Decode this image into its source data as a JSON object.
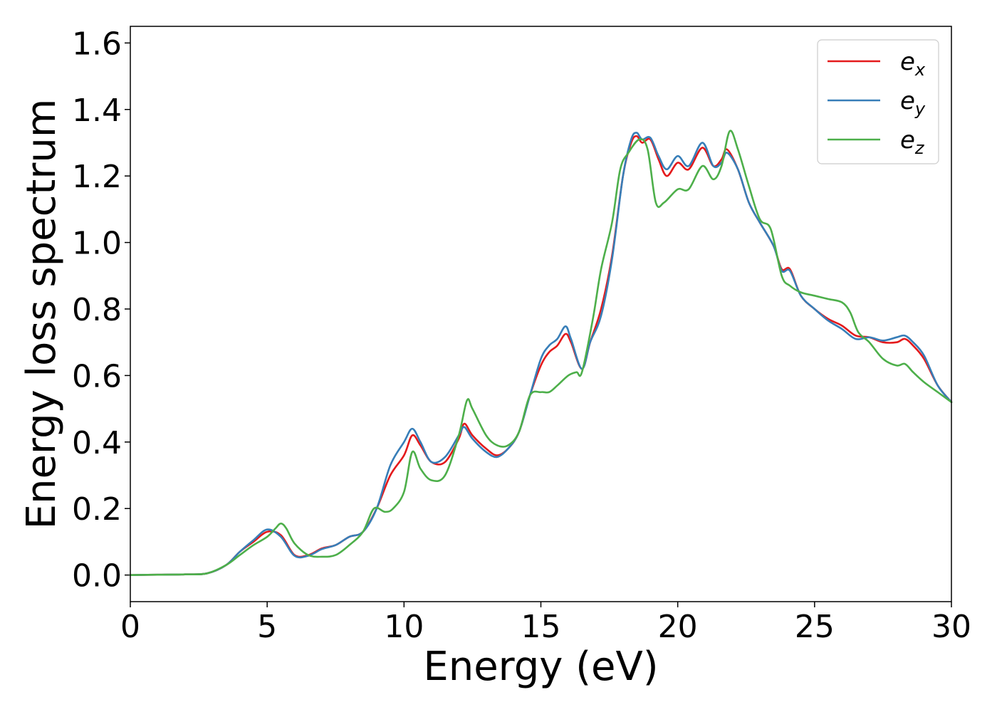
{
  "chart_data": {
    "type": "line",
    "xlabel": "Energy (eV)",
    "ylabel": "Energy loss spectrum",
    "xlim": [
      0,
      30
    ],
    "ylim": [
      -0.08,
      1.65
    ],
    "xticks": [
      0,
      5,
      10,
      15,
      20,
      25,
      30
    ],
    "xtick_labels": [
      "0",
      "5",
      "10",
      "15",
      "20",
      "25",
      "30"
    ],
    "yticks": [
      0.0,
      0.2,
      0.4,
      0.6,
      0.8,
      1.0,
      1.2,
      1.4,
      1.6
    ],
    "ytick_labels": [
      "0.0",
      "0.2",
      "0.4",
      "0.6",
      "0.8",
      "1.0",
      "1.2",
      "1.4",
      "1.6"
    ],
    "grid": false,
    "legend_position": "top-right",
    "series": [
      {
        "name": "e",
        "subscript": "x",
        "color": "#e41a1c",
        "points": [
          [
            0,
            0.0
          ],
          [
            1,
            0.001
          ],
          [
            2,
            0.002
          ],
          [
            2.8,
            0.005
          ],
          [
            3.5,
            0.03
          ],
          [
            4.0,
            0.07
          ],
          [
            4.5,
            0.1
          ],
          [
            5.0,
            0.13
          ],
          [
            5.5,
            0.12
          ],
          [
            6.0,
            0.06
          ],
          [
            6.5,
            0.06
          ],
          [
            7.0,
            0.08
          ],
          [
            7.5,
            0.09
          ],
          [
            8.0,
            0.115
          ],
          [
            8.5,
            0.13
          ],
          [
            9.0,
            0.2
          ],
          [
            9.5,
            0.3
          ],
          [
            10.0,
            0.36
          ],
          [
            10.3,
            0.42
          ],
          [
            10.6,
            0.39
          ],
          [
            11.0,
            0.34
          ],
          [
            11.5,
            0.34
          ],
          [
            12.0,
            0.41
          ],
          [
            12.2,
            0.455
          ],
          [
            12.5,
            0.42
          ],
          [
            13.0,
            0.38
          ],
          [
            13.4,
            0.36
          ],
          [
            13.8,
            0.38
          ],
          [
            14.2,
            0.43
          ],
          [
            14.6,
            0.54
          ],
          [
            15.0,
            0.63
          ],
          [
            15.3,
            0.67
          ],
          [
            15.6,
            0.69
          ],
          [
            15.9,
            0.725
          ],
          [
            16.1,
            0.7
          ],
          [
            16.5,
            0.62
          ],
          [
            16.8,
            0.7
          ],
          [
            17.2,
            0.8
          ],
          [
            17.6,
            0.96
          ],
          [
            18.0,
            1.2
          ],
          [
            18.3,
            1.3
          ],
          [
            18.5,
            1.32
          ],
          [
            18.7,
            1.3
          ],
          [
            19.0,
            1.31
          ],
          [
            19.3,
            1.25
          ],
          [
            19.6,
            1.2
          ],
          [
            20.0,
            1.24
          ],
          [
            20.4,
            1.22
          ],
          [
            20.9,
            1.285
          ],
          [
            21.3,
            1.23
          ],
          [
            21.6,
            1.25
          ],
          [
            21.8,
            1.28
          ],
          [
            22.2,
            1.22
          ],
          [
            22.6,
            1.12
          ],
          [
            23.0,
            1.06
          ],
          [
            23.5,
            0.99
          ],
          [
            23.8,
            0.92
          ],
          [
            24.1,
            0.92
          ],
          [
            24.5,
            0.84
          ],
          [
            25.0,
            0.8
          ],
          [
            25.5,
            0.77
          ],
          [
            26.0,
            0.75
          ],
          [
            26.5,
            0.72
          ],
          [
            27.0,
            0.715
          ],
          [
            27.5,
            0.7
          ],
          [
            28.0,
            0.7
          ],
          [
            28.3,
            0.71
          ],
          [
            28.6,
            0.69
          ],
          [
            29.0,
            0.65
          ],
          [
            29.5,
            0.57
          ],
          [
            30.0,
            0.52
          ]
        ]
      },
      {
        "name": "e",
        "subscript": "y",
        "color": "#377eb8",
        "points": [
          [
            0,
            0.0
          ],
          [
            1,
            0.001
          ],
          [
            2,
            0.002
          ],
          [
            2.8,
            0.005
          ],
          [
            3.5,
            0.03
          ],
          [
            4.0,
            0.07
          ],
          [
            4.5,
            0.105
          ],
          [
            5.0,
            0.137
          ],
          [
            5.5,
            0.115
          ],
          [
            6.0,
            0.058
          ],
          [
            6.5,
            0.058
          ],
          [
            7.0,
            0.078
          ],
          [
            7.5,
            0.09
          ],
          [
            8.0,
            0.115
          ],
          [
            8.5,
            0.13
          ],
          [
            9.0,
            0.2
          ],
          [
            9.5,
            0.33
          ],
          [
            10.0,
            0.4
          ],
          [
            10.3,
            0.44
          ],
          [
            10.6,
            0.4
          ],
          [
            11.0,
            0.34
          ],
          [
            11.5,
            0.355
          ],
          [
            12.0,
            0.42
          ],
          [
            12.2,
            0.445
          ],
          [
            12.5,
            0.41
          ],
          [
            13.0,
            0.37
          ],
          [
            13.4,
            0.355
          ],
          [
            13.8,
            0.38
          ],
          [
            14.2,
            0.43
          ],
          [
            14.6,
            0.54
          ],
          [
            15.0,
            0.65
          ],
          [
            15.3,
            0.69
          ],
          [
            15.6,
            0.71
          ],
          [
            15.9,
            0.748
          ],
          [
            16.1,
            0.71
          ],
          [
            16.5,
            0.62
          ],
          [
            16.8,
            0.7
          ],
          [
            17.2,
            0.78
          ],
          [
            17.6,
            0.95
          ],
          [
            18.0,
            1.2
          ],
          [
            18.3,
            1.31
          ],
          [
            18.5,
            1.33
          ],
          [
            18.7,
            1.31
          ],
          [
            19.0,
            1.315
          ],
          [
            19.3,
            1.26
          ],
          [
            19.6,
            1.22
          ],
          [
            20.0,
            1.26
          ],
          [
            20.4,
            1.23
          ],
          [
            20.9,
            1.3
          ],
          [
            21.3,
            1.23
          ],
          [
            21.6,
            1.24
          ],
          [
            21.8,
            1.27
          ],
          [
            22.2,
            1.22
          ],
          [
            22.6,
            1.12
          ],
          [
            23.0,
            1.06
          ],
          [
            23.5,
            0.99
          ],
          [
            23.8,
            0.915
          ],
          [
            24.1,
            0.915
          ],
          [
            24.5,
            0.84
          ],
          [
            25.0,
            0.8
          ],
          [
            25.5,
            0.765
          ],
          [
            26.0,
            0.74
          ],
          [
            26.5,
            0.71
          ],
          [
            27.0,
            0.715
          ],
          [
            27.5,
            0.705
          ],
          [
            28.0,
            0.715
          ],
          [
            28.3,
            0.72
          ],
          [
            28.6,
            0.7
          ],
          [
            29.0,
            0.66
          ],
          [
            29.5,
            0.57
          ],
          [
            30.0,
            0.52
          ]
        ]
      },
      {
        "name": "e",
        "subscript": "z",
        "color": "#4daf4a",
        "points": [
          [
            0,
            0.0
          ],
          [
            1,
            0.001
          ],
          [
            2,
            0.002
          ],
          [
            2.8,
            0.005
          ],
          [
            3.5,
            0.03
          ],
          [
            4.0,
            0.06
          ],
          [
            4.5,
            0.09
          ],
          [
            5.0,
            0.115
          ],
          [
            5.3,
            0.14
          ],
          [
            5.5,
            0.155
          ],
          [
            5.7,
            0.14
          ],
          [
            6.0,
            0.095
          ],
          [
            6.5,
            0.06
          ],
          [
            7.0,
            0.055
          ],
          [
            7.5,
            0.06
          ],
          [
            8.0,
            0.09
          ],
          [
            8.5,
            0.13
          ],
          [
            8.9,
            0.2
          ],
          [
            9.3,
            0.19
          ],
          [
            9.6,
            0.2
          ],
          [
            10.0,
            0.25
          ],
          [
            10.3,
            0.37
          ],
          [
            10.6,
            0.32
          ],
          [
            11.0,
            0.285
          ],
          [
            11.5,
            0.3
          ],
          [
            12.0,
            0.42
          ],
          [
            12.3,
            0.525
          ],
          [
            12.5,
            0.5
          ],
          [
            13.0,
            0.42
          ],
          [
            13.4,
            0.39
          ],
          [
            13.8,
            0.39
          ],
          [
            14.2,
            0.43
          ],
          [
            14.6,
            0.54
          ],
          [
            15.0,
            0.55
          ],
          [
            15.3,
            0.55
          ],
          [
            15.6,
            0.57
          ],
          [
            16.0,
            0.6
          ],
          [
            16.3,
            0.61
          ],
          [
            16.5,
            0.61
          ],
          [
            16.9,
            0.77
          ],
          [
            17.2,
            0.92
          ],
          [
            17.6,
            1.06
          ],
          [
            17.9,
            1.22
          ],
          [
            18.2,
            1.27
          ],
          [
            18.6,
            1.31
          ],
          [
            18.9,
            1.28
          ],
          [
            19.2,
            1.12
          ],
          [
            19.5,
            1.12
          ],
          [
            20.0,
            1.16
          ],
          [
            20.4,
            1.16
          ],
          [
            20.9,
            1.23
          ],
          [
            21.3,
            1.19
          ],
          [
            21.6,
            1.23
          ],
          [
            21.9,
            1.335
          ],
          [
            22.2,
            1.28
          ],
          [
            22.6,
            1.17
          ],
          [
            23.0,
            1.07
          ],
          [
            23.4,
            1.04
          ],
          [
            23.8,
            0.9
          ],
          [
            24.1,
            0.87
          ],
          [
            24.5,
            0.85
          ],
          [
            25.0,
            0.84
          ],
          [
            25.5,
            0.83
          ],
          [
            26.0,
            0.82
          ],
          [
            26.3,
            0.79
          ],
          [
            26.6,
            0.73
          ],
          [
            27.0,
            0.7
          ],
          [
            27.5,
            0.65
          ],
          [
            28.0,
            0.63
          ],
          [
            28.3,
            0.635
          ],
          [
            28.6,
            0.61
          ],
          [
            29.0,
            0.58
          ],
          [
            29.5,
            0.55
          ],
          [
            30.0,
            0.52
          ]
        ]
      }
    ]
  }
}
